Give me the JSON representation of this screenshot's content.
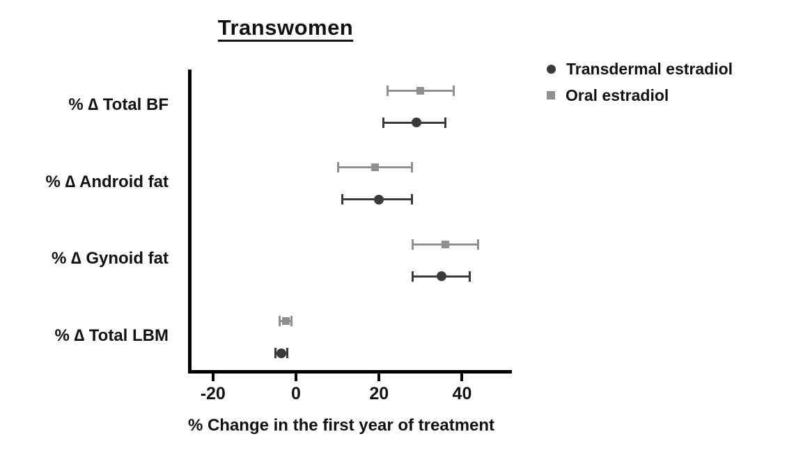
{
  "chart_data": {
    "type": "scatter",
    "subtype": "horizontal-point-estimates-with-error-bars",
    "title": "Transwomen",
    "xlabel": "% Change in the first year of treatment",
    "categories": [
      "% ∆ Total BF",
      "% ∆ Android fat",
      "% ∆ Gynoid fat",
      "% ∆ Total LBM"
    ],
    "x_ticks": [
      -20,
      0,
      20,
      40
    ],
    "xlim": [
      -26,
      52
    ],
    "grid": false,
    "legend_position": "top-right",
    "axis_color": "#000000",
    "series": [
      {
        "name": "Transdermal estradiol",
        "marker": "circle",
        "color": "#3a3a3c",
        "values": [
          29,
          20,
          35,
          -3.5
        ],
        "ci_low": [
          21,
          11,
          28,
          -5
        ],
        "ci_high": [
          36,
          28,
          42,
          -2
        ]
      },
      {
        "name": "Oral estradiol",
        "marker": "square",
        "color": "#8f8f91",
        "values": [
          30,
          19,
          36,
          -2.5
        ],
        "ci_low": [
          22,
          10,
          28,
          -4
        ],
        "ci_high": [
          38,
          28,
          44,
          -1
        ]
      }
    ]
  }
}
